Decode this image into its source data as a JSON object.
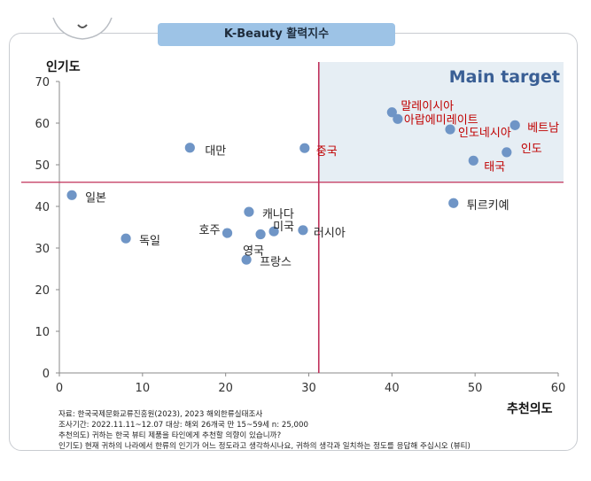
{
  "header": {
    "title": "K-Beauty 활력지수"
  },
  "chart_data": {
    "type": "scatter",
    "title": "K-Beauty 활력지수",
    "xlabel": "추천의도",
    "ylabel": "인기도",
    "xlim": [
      0,
      60
    ],
    "ylim": [
      0,
      70
    ],
    "x_ticks": [
      "0",
      "10",
      "20",
      "30",
      "40",
      "50",
      "60"
    ],
    "y_ticks": [
      "0",
      "10",
      "20",
      "30",
      "40",
      "50",
      "60",
      "70"
    ],
    "grid": false,
    "quadrant_annotation": "Main target",
    "threshold_lines": {
      "x": 31.2,
      "y": 45.8
    },
    "points": [
      {
        "label": "말레이시아",
        "x": 40.0,
        "y": 62.6,
        "highlight": true
      },
      {
        "label": "아랍에미레이트",
        "x": 40.7,
        "y": 61.0,
        "highlight": true
      },
      {
        "label": "베트남",
        "x": 54.8,
        "y": 59.5,
        "highlight": true
      },
      {
        "label": "인도네시아",
        "x": 47.0,
        "y": 58.5,
        "highlight": true
      },
      {
        "label": "인도",
        "x": 53.8,
        "y": 53.0,
        "highlight": true
      },
      {
        "label": "태국",
        "x": 49.8,
        "y": 51.0,
        "highlight": true
      },
      {
        "label": "중국",
        "x": 29.5,
        "y": 54.0,
        "highlight": true
      },
      {
        "label": "대만",
        "x": 15.7,
        "y": 54.1,
        "highlight": false
      },
      {
        "label": "일본",
        "x": 1.5,
        "y": 42.7,
        "highlight": false
      },
      {
        "label": "튀르키예",
        "x": 47.4,
        "y": 40.8,
        "highlight": false
      },
      {
        "label": "캐나다",
        "x": 22.8,
        "y": 38.7,
        "highlight": false
      },
      {
        "label": "호주",
        "x": 20.2,
        "y": 33.6,
        "highlight": false
      },
      {
        "label": "미국",
        "x": 25.8,
        "y": 34.0,
        "highlight": false
      },
      {
        "label": "러시아",
        "x": 29.3,
        "y": 34.3,
        "highlight": false
      },
      {
        "label": "영국",
        "x": 24.2,
        "y": 33.3,
        "highlight": false
      },
      {
        "label": "독일",
        "x": 8.0,
        "y": 32.3,
        "highlight": false
      },
      {
        "label": "프랑스",
        "x": 22.5,
        "y": 27.2,
        "highlight": false
      }
    ]
  },
  "notes": [
    "자료: 한국국제문화교류진흥원(2023), 2023 해외한류실태조사",
    "조사기간: 2022.11.11~12.07  대상: 해외 26개국 만 15~59세 n: 25,000",
    "추천의도) 귀하는 한국 뷰티 제품을 타인에게 추천할 의향이 있습니까?",
    "인기도) 현재 귀하의 나라에서 한류의 인기가 어느 정도라고 생각하시나요, 귀하의 생각과 일치하는 정도를 응답해 주십시오 (뷰티)"
  ],
  "colors": {
    "point": "#6f95c6",
    "threshold": "#c0305a",
    "highlight_text": "#c00000",
    "normal_text": "#262626",
    "quadrant_fill": "#e6eef4",
    "quadrant_title": "#3a5f95",
    "title_pill": "#9dc3e6"
  }
}
